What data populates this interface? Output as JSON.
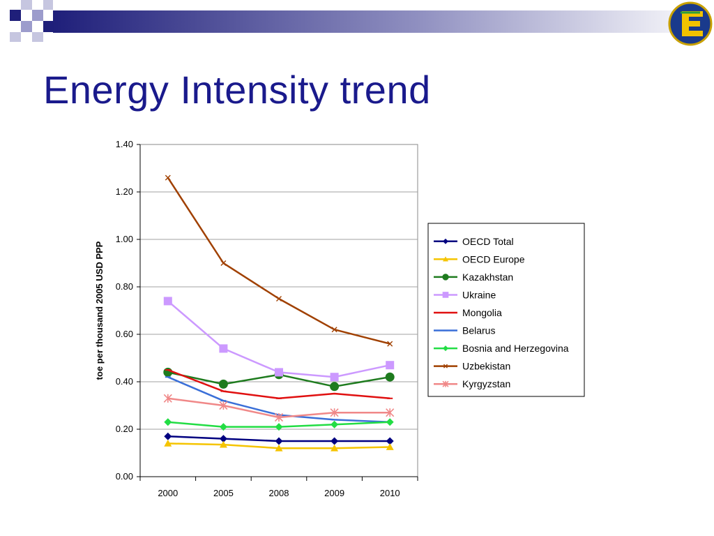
{
  "slide": {
    "title": "Energy Intensity trend",
    "logo_icon": "energy-charter-e-logo"
  },
  "colors": {
    "title": "#1a1a8c",
    "banner_start": "#1f1f7a",
    "banner_square": "#9c9ccc"
  },
  "chart_data": {
    "type": "line",
    "title": "",
    "xlabel": "",
    "ylabel": "toe per thousand 2005 USD PPP",
    "categories": [
      "2000",
      "2005",
      "2008",
      "2009",
      "2010"
    ],
    "ylim": [
      0,
      1.4
    ],
    "yticks": [
      "0.00",
      "0.20",
      "0.40",
      "0.60",
      "0.80",
      "1.00",
      "1.20",
      "1.40"
    ],
    "grid": true,
    "legend_position": "right",
    "series": [
      {
        "name": "OECD Total",
        "color": "#000080",
        "marker": "diamond",
        "values": [
          0.17,
          0.16,
          0.15,
          0.15,
          0.15
        ]
      },
      {
        "name": "OECD Europe",
        "color": "#f5c400",
        "marker": "triangle",
        "values": [
          0.14,
          0.135,
          0.12,
          0.12,
          0.125
        ]
      },
      {
        "name": "Kazakhstan",
        "color": "#1e7b1e",
        "marker": "circle",
        "values": [
          0.44,
          0.39,
          0.43,
          0.38,
          0.42
        ]
      },
      {
        "name": "Ukraine",
        "color": "#cc99ff",
        "marker": "square",
        "values": [
          0.74,
          0.54,
          0.44,
          0.42,
          0.47
        ]
      },
      {
        "name": "Mongolia",
        "color": "#e01010",
        "marker": "dash",
        "values": [
          0.45,
          0.36,
          0.33,
          0.35,
          0.33
        ]
      },
      {
        "name": "Belarus",
        "color": "#3a6fd8",
        "marker": "dash",
        "values": [
          0.42,
          0.32,
          0.26,
          0.24,
          0.23
        ]
      },
      {
        "name": "Bosnia and Herzegovina",
        "color": "#22dd44",
        "marker": "diamond",
        "values": [
          0.23,
          0.21,
          0.21,
          0.22,
          0.23
        ]
      },
      {
        "name": "Uzbekistan",
        "color": "#a04000",
        "marker": "x",
        "values": [
          1.26,
          0.9,
          0.75,
          0.62,
          0.56
        ]
      },
      {
        "name": "Kyrgyzstan",
        "color": "#f08888",
        "marker": "star",
        "values": [
          0.33,
          0.3,
          0.25,
          0.27,
          0.27
        ]
      }
    ]
  }
}
